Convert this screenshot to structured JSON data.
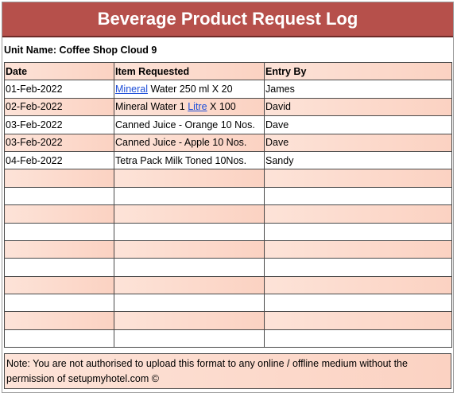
{
  "title": "Beverage Product Request Log",
  "unit_label": "Unit Name: Coffee Shop Cloud 9",
  "columns": [
    "Date",
    "Item Requested",
    "Entry By"
  ],
  "rows": [
    {
      "date": "01-Feb-2022",
      "item_link": "Mineral",
      "item_rest": " Water 250 ml X 20",
      "entry_by": "James"
    },
    {
      "date": "02-Feb-2022",
      "item_pre": "Mineral Water 1 ",
      "item_link": "Litre",
      "item_post": " X 100",
      "entry_by": "David"
    },
    {
      "date": "03-Feb-2022",
      "item": "Canned Juice - Orange 10 Nos.",
      "entry_by": "Dave"
    },
    {
      "date": "03-Feb-2022",
      "item": "Canned Juice - Apple 10 Nos.",
      "entry_by": "Dave"
    },
    {
      "date": "04-Feb-2022",
      "item": "Tetra Pack Milk Toned 10Nos.",
      "entry_by": "Sandy"
    }
  ],
  "note": "Note: You are not authorised to upload this format to any online / offline medium without the permission of setupmyhotel.com ©",
  "colors": {
    "title_bg": "#b6504b",
    "row_tint": "#fbd2c2",
    "link": "#1f4fd8"
  }
}
